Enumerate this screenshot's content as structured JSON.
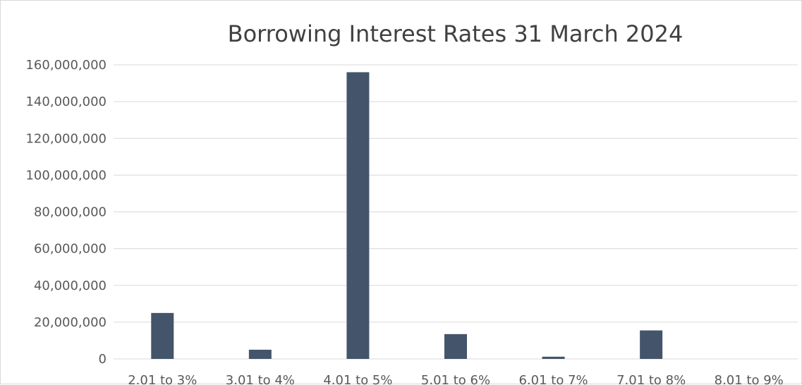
{
  "chart_data": {
    "type": "bar",
    "title": "Borrowing Interest Rates 31 March 2024",
    "xlabel": "",
    "ylabel": "",
    "categories": [
      "2.01 to 3%",
      "3.01 to 4%",
      "4.01 to 5%",
      "5.01 to 6%",
      "6.01 to 7%",
      "7.01 to 8%",
      "8.01 to 9%"
    ],
    "values": [
      25000000,
      5000000,
      156000000,
      13500000,
      1200000,
      15500000,
      0
    ],
    "ylim": [
      0,
      160000000
    ],
    "yticks": [
      0,
      20000000,
      40000000,
      60000000,
      80000000,
      100000000,
      120000000,
      140000000,
      160000000
    ],
    "ytick_labels": [
      "0",
      "20,000,000",
      "40,000,000",
      "60,000,000",
      "80,000,000",
      "100,000,000",
      "120,000,000",
      "140,000,000",
      "160,000,000"
    ],
    "grid": true,
    "legend": "none",
    "colors": {
      "bar": "#44546a",
      "grid": "#d9d9d9",
      "text": "#595959",
      "title": "#404040"
    }
  }
}
